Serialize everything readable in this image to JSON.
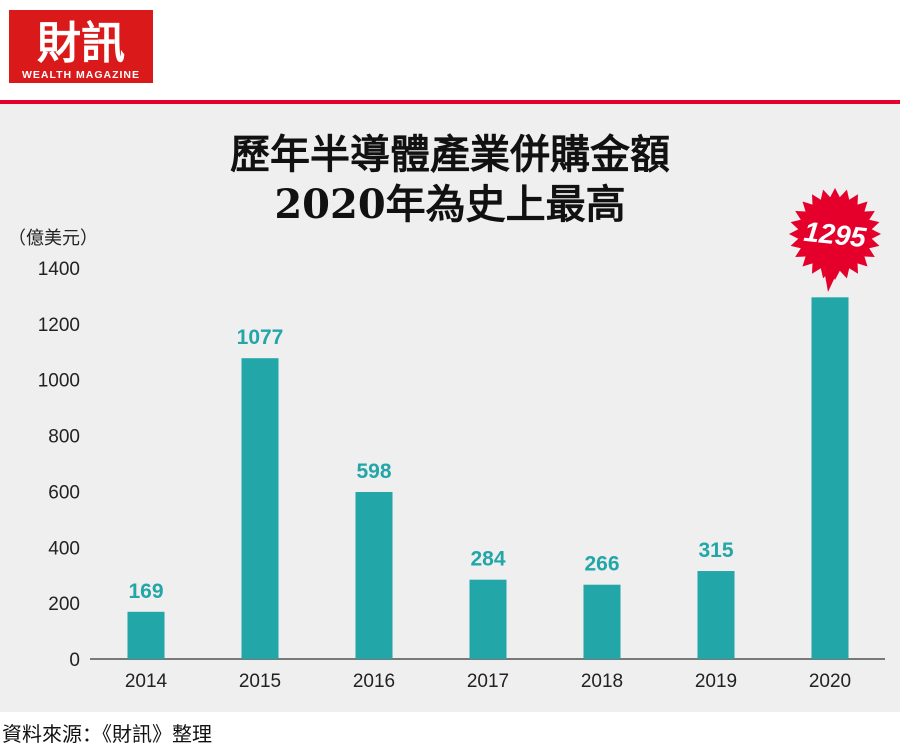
{
  "logo": {
    "text": "財訊",
    "subtext": "WEALTH MAGAZINE"
  },
  "colors": {
    "bar": "#22a6a8",
    "accent": "#e4002b",
    "background": "#efefef",
    "label": "#22a6a8"
  },
  "source": "資料來源：《財訊》整理",
  "chart_data": {
    "type": "bar",
    "title": [
      "歷年半導體產業併購金額",
      "2020年為史上最高"
    ],
    "ylabel": "（億美元）",
    "xlabel": "",
    "categories": [
      "2014",
      "2015",
      "2016",
      "2017",
      "2018",
      "2019",
      "2020"
    ],
    "values": [
      169,
      1077,
      598,
      284,
      266,
      315,
      1295
    ],
    "data_labels": [
      "169",
      "1077",
      "598",
      "284",
      "266",
      "315",
      "1295"
    ],
    "highlight": {
      "category": "2020",
      "style": "red starburst"
    },
    "ylim": [
      0,
      1400
    ],
    "yticks": [
      "0",
      "200",
      "400",
      "600",
      "800",
      "1000",
      "1200",
      "1400"
    ],
    "grid": false
  }
}
